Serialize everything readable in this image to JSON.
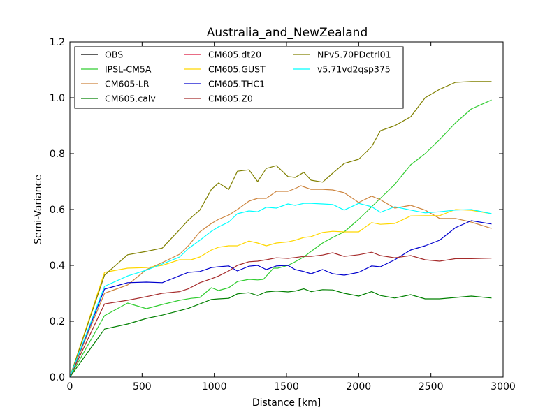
{
  "chart_data": {
    "type": "line",
    "title": "Australia_and_NewZealand",
    "xlabel": "Distance [km]",
    "ylabel": "Semi-Variance",
    "xlim": [
      0,
      3000
    ],
    "ylim": [
      0.0,
      1.2
    ],
    "xticks": [
      0,
      500,
      1000,
      1500,
      2000,
      2500,
      3000
    ],
    "xtick_labels": [
      "0",
      "500",
      "1000",
      "1500",
      "2000",
      "2500",
      "3000"
    ],
    "yticks": [
      0.0,
      0.2,
      0.4,
      0.6,
      0.8,
      1.0,
      1.2
    ],
    "ytick_labels": [
      "0.0",
      "0.2",
      "0.4",
      "0.6",
      "0.8",
      "1.0",
      "1.2"
    ],
    "grid": false,
    "legend_position": "top-left",
    "series": [
      {
        "name": "OBS",
        "color": "#000000",
        "x": [],
        "y": []
      },
      {
        "name": "IPSL-CM5A",
        "color": "#32cd32",
        "x": [
          0,
          240,
          400,
          530,
          640,
          760,
          840,
          900,
          980,
          1030,
          1100,
          1160,
          1240,
          1300,
          1340,
          1410,
          1440,
          1510,
          1550,
          1620,
          1670,
          1750,
          1820,
          1900,
          2000,
          2090,
          2150,
          2250,
          2360,
          2460,
          2560,
          2670,
          2780,
          2920
        ],
        "y": [
          0.0,
          0.22,
          0.265,
          0.245,
          0.26,
          0.275,
          0.282,
          0.285,
          0.32,
          0.31,
          0.32,
          0.342,
          0.35,
          0.348,
          0.35,
          0.39,
          0.39,
          0.4,
          0.41,
          0.43,
          0.45,
          0.48,
          0.5,
          0.52,
          0.565,
          0.61,
          0.64,
          0.69,
          0.76,
          0.8,
          0.85,
          0.91,
          0.96,
          0.992
        ]
      },
      {
        "name": "CM605-LR",
        "color": "#cd853f",
        "x": [
          0,
          240,
          400,
          530,
          640,
          760,
          820,
          900,
          980,
          1030,
          1100,
          1160,
          1240,
          1300,
          1360,
          1430,
          1510,
          1560,
          1600,
          1670,
          1750,
          1820,
          1900,
          2000,
          2090,
          2150,
          2250,
          2360,
          2460,
          2560,
          2670,
          2780,
          2920
        ],
        "y": [
          0.0,
          0.3,
          0.33,
          0.385,
          0.41,
          0.44,
          0.47,
          0.52,
          0.55,
          0.565,
          0.58,
          0.6,
          0.63,
          0.64,
          0.64,
          0.665,
          0.665,
          0.675,
          0.685,
          0.672,
          0.672,
          0.67,
          0.66,
          0.625,
          0.648,
          0.635,
          0.605,
          0.615,
          0.598,
          0.568,
          0.568,
          0.555,
          0.532
        ]
      },
      {
        "name": "CM605.calv",
        "color": "#008000",
        "x": [
          0,
          240,
          400,
          530,
          640,
          760,
          820,
          900,
          980,
          1030,
          1100,
          1160,
          1240,
          1300,
          1360,
          1430,
          1510,
          1560,
          1620,
          1670,
          1750,
          1820,
          1900,
          2000,
          2090,
          2150,
          2250,
          2360,
          2460,
          2560,
          2670,
          2780,
          2920
        ],
        "y": [
          0.0,
          0.172,
          0.19,
          0.21,
          0.222,
          0.238,
          0.246,
          0.262,
          0.278,
          0.28,
          0.282,
          0.298,
          0.302,
          0.292,
          0.305,
          0.308,
          0.305,
          0.308,
          0.316,
          0.306,
          0.313,
          0.312,
          0.3,
          0.29,
          0.306,
          0.292,
          0.283,
          0.295,
          0.28,
          0.28,
          0.285,
          0.29,
          0.283
        ]
      },
      {
        "name": "CM605.dt20",
        "color": "#dc143c",
        "x": [],
        "y": []
      },
      {
        "name": "CM605.GUST",
        "color": "#ffd700",
        "x": [
          0,
          240,
          400,
          530,
          640,
          760,
          840,
          900,
          980,
          1030,
          1100,
          1160,
          1240,
          1300,
          1360,
          1430,
          1510,
          1560,
          1620,
          1670,
          1750,
          1820,
          1900,
          2000,
          2090,
          2150,
          2250,
          2360,
          2460,
          2560,
          2670,
          2780,
          2920
        ],
        "y": [
          0.0,
          0.375,
          0.39,
          0.392,
          0.4,
          0.42,
          0.42,
          0.43,
          0.455,
          0.465,
          0.47,
          0.47,
          0.487,
          0.48,
          0.47,
          0.48,
          0.484,
          0.49,
          0.5,
          0.503,
          0.518,
          0.522,
          0.52,
          0.52,
          0.553,
          0.547,
          0.55,
          0.577,
          0.578,
          0.578,
          0.6,
          0.597,
          0.585
        ]
      },
      {
        "name": "CM605.THC1",
        "color": "#0000cd",
        "x": [
          0,
          240,
          400,
          530,
          640,
          760,
          820,
          900,
          980,
          1030,
          1100,
          1160,
          1240,
          1300,
          1360,
          1430,
          1510,
          1560,
          1620,
          1670,
          1750,
          1820,
          1900,
          2000,
          2090,
          2150,
          2250,
          2360,
          2460,
          2560,
          2670,
          2780,
          2920
        ],
        "y": [
          0.0,
          0.315,
          0.338,
          0.34,
          0.338,
          0.363,
          0.375,
          0.378,
          0.392,
          0.395,
          0.398,
          0.38,
          0.397,
          0.4,
          0.385,
          0.398,
          0.4,
          0.385,
          0.378,
          0.37,
          0.385,
          0.37,
          0.365,
          0.375,
          0.398,
          0.395,
          0.42,
          0.455,
          0.47,
          0.49,
          0.535,
          0.56,
          0.548
        ]
      },
      {
        "name": "CM605.Z0",
        "color": "#a52a2a",
        "x": [
          0,
          240,
          400,
          530,
          640,
          760,
          820,
          900,
          980,
          1030,
          1100,
          1160,
          1240,
          1300,
          1360,
          1430,
          1510,
          1560,
          1620,
          1670,
          1750,
          1820,
          1900,
          2000,
          2090,
          2150,
          2250,
          2360,
          2460,
          2560,
          2670,
          2780,
          2920
        ],
        "y": [
          0.0,
          0.262,
          0.275,
          0.288,
          0.3,
          0.306,
          0.316,
          0.338,
          0.352,
          0.362,
          0.38,
          0.4,
          0.413,
          0.415,
          0.42,
          0.427,
          0.425,
          0.428,
          0.432,
          0.432,
          0.437,
          0.445,
          0.432,
          0.438,
          0.447,
          0.435,
          0.427,
          0.435,
          0.42,
          0.415,
          0.424,
          0.424,
          0.426
        ]
      },
      {
        "name": "NPv5.70PDctrl01",
        "color": "#808000",
        "x": [
          0,
          240,
          400,
          530,
          640,
          760,
          820,
          900,
          980,
          1030,
          1100,
          1160,
          1240,
          1300,
          1360,
          1430,
          1510,
          1560,
          1620,
          1670,
          1750,
          1820,
          1900,
          2000,
          2090,
          2150,
          2250,
          2360,
          2460,
          2560,
          2670,
          2780,
          2920
        ],
        "y": [
          0.0,
          0.365,
          0.438,
          0.45,
          0.462,
          0.528,
          0.562,
          0.598,
          0.672,
          0.695,
          0.672,
          0.737,
          0.742,
          0.7,
          0.747,
          0.757,
          0.718,
          0.715,
          0.733,
          0.705,
          0.698,
          0.73,
          0.765,
          0.78,
          0.825,
          0.882,
          0.9,
          0.932,
          1.0,
          1.03,
          1.055,
          1.058,
          1.058
        ]
      },
      {
        "name": "v5.71vd2qsp375",
        "color": "#00ffff",
        "x": [
          0,
          240,
          400,
          530,
          640,
          760,
          820,
          900,
          980,
          1030,
          1100,
          1160,
          1240,
          1300,
          1360,
          1430,
          1510,
          1560,
          1620,
          1670,
          1750,
          1820,
          1900,
          2000,
          2090,
          2150,
          2250,
          2360,
          2460,
          2560,
          2670,
          2780,
          2920
        ],
        "y": [
          0.0,
          0.325,
          0.362,
          0.383,
          0.405,
          0.43,
          0.46,
          0.49,
          0.522,
          0.538,
          0.555,
          0.585,
          0.595,
          0.592,
          0.608,
          0.605,
          0.62,
          0.615,
          0.622,
          0.622,
          0.62,
          0.618,
          0.598,
          0.622,
          0.61,
          0.59,
          0.61,
          0.598,
          0.588,
          0.592,
          0.598,
          0.6,
          0.585
        ]
      }
    ]
  }
}
